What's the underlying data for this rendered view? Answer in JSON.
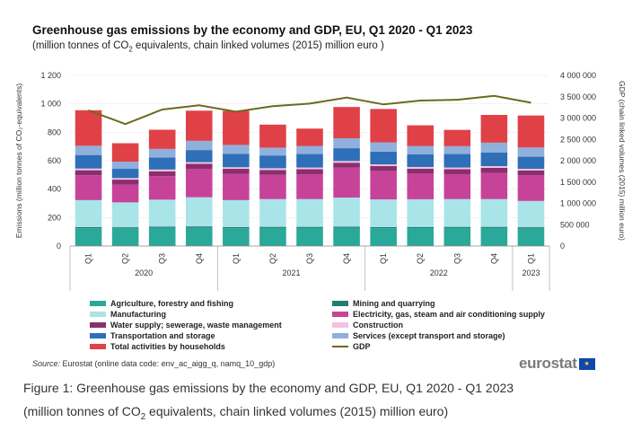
{
  "chart_data": {
    "type": "bar",
    "title": "Greenhouse gas emissions by the economy and GDP, EU, Q1 2020 - Q1 2023",
    "subtitle_before": "(million tonnes of CO",
    "subtitle_sub": "2",
    "subtitle_after": " equivalents, chain linked volumes (2015) million euro )",
    "ylabel": "Emissions (million tonnes of CO₂-equivalents)",
    "y2label": "GDP (chain linked volumes (2015) million euro)",
    "ylim": [
      0,
      1200
    ],
    "y2lim": [
      0,
      4000000
    ],
    "yticks": [
      "0",
      "200",
      "400",
      "600",
      "800",
      "1 000",
      "1 200"
    ],
    "y2ticks": [
      "0",
      "500 000",
      "1 000 000",
      "1 500 000",
      "2 000 000",
      "2 500 000",
      "3 000 000",
      "3 500 000",
      "4 000 000"
    ],
    "categories": [
      "Q1",
      "Q2",
      "Q3",
      "Q4",
      "Q1",
      "Q2",
      "Q3",
      "Q4",
      "Q1",
      "Q2",
      "Q3",
      "Q4",
      "Q1"
    ],
    "years": [
      {
        "label": "2020",
        "start": 0,
        "end": 3
      },
      {
        "label": "2021",
        "start": 4,
        "end": 7
      },
      {
        "label": "2022",
        "start": 8,
        "end": 11
      },
      {
        "label": "2023",
        "start": 12,
        "end": 12
      }
    ],
    "series": [
      {
        "name": "Agriculture, forestry and fishing",
        "color": "#2aa89a",
        "values": [
          125,
          125,
          128,
          130,
          125,
          127,
          127,
          128,
          125,
          126,
          127,
          127,
          124
        ]
      },
      {
        "name": "Mining and quarrying",
        "color": "#1f7d73",
        "values": [
          8,
          7,
          8,
          8,
          8,
          8,
          8,
          8,
          8,
          8,
          8,
          8,
          8
        ]
      },
      {
        "name": "Manufacturing",
        "color": "#a9e4e8",
        "values": [
          190,
          175,
          190,
          205,
          190,
          195,
          195,
          205,
          195,
          195,
          195,
          195,
          185
        ]
      },
      {
        "name": "Electricity, gas, steam and air conditioning supply",
        "color": "#c7439a",
        "values": [
          175,
          125,
          165,
          200,
          185,
          170,
          175,
          210,
          200,
          180,
          175,
          185,
          180
        ]
      },
      {
        "name": "Water supply; sewerage, waste management",
        "color": "#8c2e6e",
        "values": [
          35,
          35,
          35,
          35,
          35,
          35,
          35,
          35,
          35,
          35,
          35,
          35,
          35
        ]
      },
      {
        "name": "Construction",
        "color": "#f3c4e2",
        "values": [
          12,
          11,
          12,
          12,
          11,
          12,
          12,
          12,
          11,
          12,
          12,
          12,
          11
        ]
      },
      {
        "name": "Transportation and storage",
        "color": "#2e6fb8",
        "values": [
          95,
          65,
          85,
          85,
          95,
          90,
          95,
          90,
          90,
          90,
          95,
          95,
          85
        ]
      },
      {
        "name": "Services (except transport and storage)",
        "color": "#8fb0dc",
        "values": [
          65,
          50,
          60,
          65,
          62,
          55,
          57,
          70,
          65,
          58,
          55,
          70,
          65
        ]
      },
      {
        "name": "Total activities by households",
        "color": "#e04147",
        "values": [
          250,
          130,
          135,
          212,
          240,
          162,
          122,
          220,
          235,
          145,
          115,
          195,
          225
        ]
      }
    ],
    "line": {
      "name": "GDP",
      "color": "#6b6a1f",
      "values": [
        3180000,
        2860000,
        3200000,
        3300000,
        3150000,
        3280000,
        3340000,
        3480000,
        3320000,
        3410000,
        3430000,
        3520000,
        3360000
      ]
    },
    "legend_position": "bottom",
    "grid": true
  },
  "source": {
    "label": "Source:",
    "text": " Eurostat (online data code: env_ac_aigg_q, namq_10_gdp)"
  },
  "logo": {
    "text": "eurostat",
    "flag_glyph": "★"
  },
  "caption": {
    "line1": "Figure 1: Greenhouse gas emissions by the economy and GDP, EU, Q1 2020 - Q1 2023",
    "line2_before": "(million tonnes of CO",
    "line2_sub": "2",
    "line2_after": " equivalents, chain linked volumes (2015) million euro)"
  }
}
